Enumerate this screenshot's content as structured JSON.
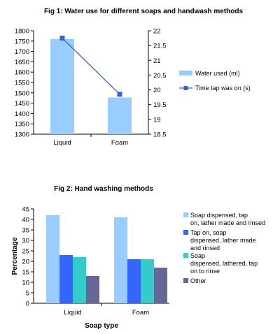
{
  "chart_data": [
    {
      "type": "bar+line",
      "title": "Fig 1: Water use for different soaps and handwash methods",
      "categories": [
        "Liquid",
        "Foam"
      ],
      "series": [
        {
          "name": "Water used (ml)",
          "type": "bar",
          "axis": "left",
          "values": [
            1760,
            1477
          ],
          "color": "#99ccff"
        },
        {
          "name": "Time tap was on (s)",
          "type": "line",
          "axis": "right",
          "values": [
            21.75,
            19.85
          ],
          "color": "#3366cc"
        }
      ],
      "ylim_left": [
        1300,
        1800
      ],
      "ylim_right": [
        18.5,
        22
      ],
      "yticks_left": [
        "1300",
        "1350",
        "1400",
        "1450",
        "1500",
        "1550",
        "1600",
        "1650",
        "1700",
        "1750",
        "1800"
      ],
      "yticks_right": [
        "18.5",
        "19",
        "19.5",
        "20",
        "20.5",
        "21",
        "21.5",
        "22"
      ],
      "legend_position": "right"
    },
    {
      "type": "bar",
      "title": "Fig 2: Hand washing methods",
      "categories": [
        "Liquid",
        "Foam"
      ],
      "series": [
        {
          "name": "Soap dispensed, tap on, lather made and rinsed",
          "legend_lines": [
            "Soap dispensed, tap",
            "on, lather made and rinsed"
          ],
          "values": [
            42,
            41
          ],
          "color": "#99ccff"
        },
        {
          "name": "Tap on, soap dispensed, lather made and rinsed",
          "legend_lines": [
            "Tap on, soap",
            "dispensed, lather made",
            "and rinsed"
          ],
          "values": [
            23,
            21
          ],
          "color": "#3366ff"
        },
        {
          "name": "Soap dispensed, lathered, tap on to rinse",
          "legend_lines": [
            "Soap",
            "dispensed, lathered, tap",
            "on to rinse"
          ],
          "values": [
            22,
            21
          ],
          "color": "#33cccc"
        },
        {
          "name": "Other",
          "legend_lines": [
            "Other"
          ],
          "values": [
            13,
            17
          ],
          "color": "#666699"
        }
      ],
      "xlabel": "Soap type",
      "ylabel": "Percentage",
      "ylim": [
        0,
        45
      ],
      "yticks": [
        "0",
        "5",
        "10",
        "15",
        "20",
        "25",
        "30",
        "35",
        "40",
        "45"
      ],
      "legend_position": "right"
    }
  ]
}
